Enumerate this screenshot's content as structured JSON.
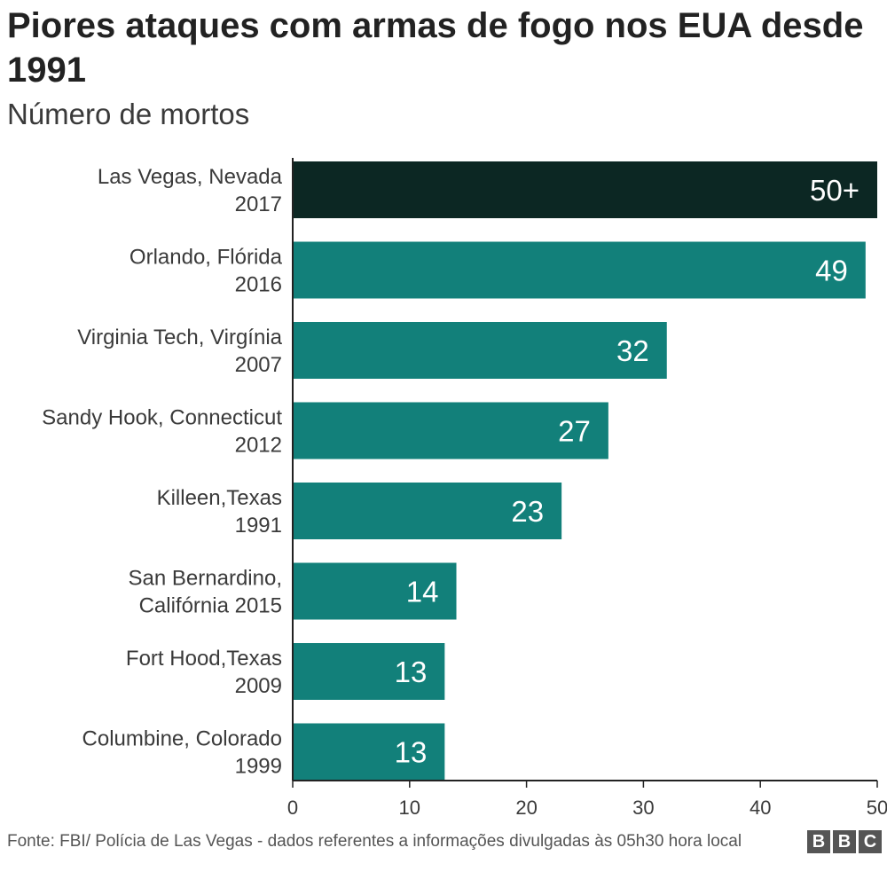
{
  "header": {
    "title": "Piores ataques com armas de fogo nos EUA desde 1991",
    "subtitle": "Número de mortos"
  },
  "chart_data": {
    "type": "bar",
    "orientation": "horizontal",
    "categories": [
      [
        "Las Vegas, Nevada",
        "2017"
      ],
      [
        "Orlando, Flórida",
        "2016"
      ],
      [
        "Virginia Tech, Virgínia",
        "2007"
      ],
      [
        "Sandy Hook, Connecticut",
        "2012"
      ],
      [
        "Killeen,Texas",
        "1991"
      ],
      [
        "San Bernardino,",
        "Califórnia 2015"
      ],
      [
        "Fort Hood,Texas",
        "2009"
      ],
      [
        "Columbine, Colorado",
        "1999"
      ]
    ],
    "values": [
      50,
      49,
      32,
      27,
      23,
      14,
      13,
      13
    ],
    "value_labels": [
      "50+",
      "49",
      "32",
      "27",
      "23",
      "14",
      "13",
      "13"
    ],
    "highlight_index": 0,
    "xlim": [
      0,
      50
    ],
    "xticks": [
      0,
      10,
      20,
      30,
      40,
      50
    ],
    "grid": false,
    "colors": {
      "highlight": "#0c2723",
      "bar": "#12807a",
      "axis": "#222222"
    }
  },
  "footer": {
    "source": "Fonte: FBI/ Polícia de Las Vegas - dados referentes a informações divulgadas às 05h30 hora local",
    "logo_letters": [
      "B",
      "B",
      "C"
    ]
  }
}
